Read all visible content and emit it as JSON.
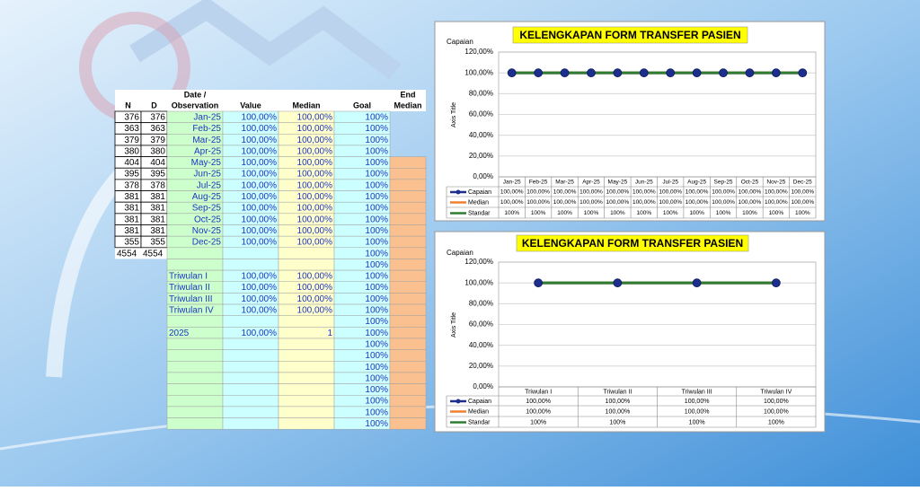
{
  "table": {
    "header_top": [
      null,
      null,
      "Date /",
      null,
      null,
      null,
      "End"
    ],
    "headers": [
      "N",
      "D",
      "Observation",
      "Value",
      "Median",
      "Goal",
      "Median"
    ],
    "rows": [
      [
        "376",
        "376",
        "Jan-25",
        "100,00%",
        "100,00%",
        "100%",
        null
      ],
      [
        "363",
        "363",
        "Feb-25",
        "100,00%",
        "100,00%",
        "100%",
        null
      ],
      [
        "379",
        "379",
        "Mar-25",
        "100,00%",
        "100,00%",
        "100%",
        null
      ],
      [
        "380",
        "380",
        "Apr-25",
        "100,00%",
        "100,00%",
        "100%",
        null
      ],
      [
        "404",
        "404",
        "May-25",
        "100,00%",
        "100,00%",
        "100%",
        null
      ],
      [
        "395",
        "395",
        "Jun-25",
        "100,00%",
        "100,00%",
        "100%",
        null
      ],
      [
        "378",
        "378",
        "Jul-25",
        "100,00%",
        "100,00%",
        "100%",
        null
      ],
      [
        "381",
        "381",
        "Aug-25",
        "100,00%",
        "100,00%",
        "100%",
        null
      ],
      [
        "381",
        "381",
        "Sep-25",
        "100,00%",
        "100,00%",
        "100%",
        null
      ],
      [
        "381",
        "381",
        "Oct-25",
        "100,00%",
        "100,00%",
        "100%",
        null
      ],
      [
        "381",
        "381",
        "Nov-25",
        "100,00%",
        "100,00%",
        "100%",
        null
      ],
      [
        "355",
        "355",
        "Dec-25",
        "100,00%",
        "100,00%",
        "100%",
        null
      ],
      [
        "4554",
        "4554",
        null,
        null,
        null,
        "100%",
        null
      ],
      [
        null,
        null,
        null,
        null,
        null,
        "100%",
        null
      ],
      [
        null,
        null,
        "Triwulan I",
        "100,00%",
        "100,00%",
        "100%",
        null
      ],
      [
        null,
        null,
        "Triwulan II",
        "100,00%",
        "100,00%",
        "100%",
        null
      ],
      [
        null,
        null,
        "Triwulan III",
        "100,00%",
        "100,00%",
        "100%",
        null
      ],
      [
        null,
        null,
        "Triwulan IV",
        "100,00%",
        "100,00%",
        "100%",
        null
      ],
      [
        null,
        null,
        null,
        null,
        null,
        "100%",
        null
      ],
      [
        null,
        null,
        "2025",
        "100,00%",
        "1",
        "100%",
        null
      ],
      [
        null,
        null,
        null,
        null,
        null,
        "100%",
        null
      ],
      [
        null,
        null,
        null,
        null,
        null,
        "100%",
        null
      ],
      [
        null,
        null,
        null,
        null,
        null,
        "100%",
        null
      ],
      [
        null,
        null,
        null,
        null,
        null,
        "100%",
        null
      ],
      [
        null,
        null,
        null,
        null,
        null,
        "100%",
        null
      ],
      [
        null,
        null,
        null,
        null,
        null,
        "100%",
        null
      ],
      [
        null,
        null,
        null,
        null,
        null,
        "100%",
        null
      ],
      [
        null,
        null,
        null,
        null,
        null,
        "100%",
        null
      ]
    ]
  },
  "chart_data": [
    {
      "type": "line",
      "title": "KELENGKAPAN FORM TRANSFER PASIEN",
      "subtitle": "Capaian",
      "y_label": "Axis Title",
      "categories": [
        "Jan-25",
        "Feb-25",
        "Mar-25",
        "Apr-25",
        "May-25",
        "Jun-25",
        "Jul-25",
        "Aug-25",
        "Sep-25",
        "Oct-25",
        "Nov-25",
        "Dec-25"
      ],
      "ylim": [
        0,
        120
      ],
      "yticks": [
        {
          "value": 0,
          "label": "0,00%"
        },
        {
          "value": 20,
          "label": "20,00%"
        },
        {
          "value": 40,
          "label": "40,00%"
        },
        {
          "value": 60,
          "label": "60,00%"
        },
        {
          "value": 80,
          "label": "80,00%"
        },
        {
          "value": 100,
          "label": "100,00%"
        },
        {
          "value": 120,
          "label": "120,00%"
        }
      ],
      "grid": true,
      "series": [
        {
          "name": "Capaian",
          "color": "#1c2f8c",
          "marker": true,
          "values": [
            100,
            100,
            100,
            100,
            100,
            100,
            100,
            100,
            100,
            100,
            100,
            100
          ],
          "value_labels": [
            "100,00%",
            "100,00%",
            "100,00%",
            "100,00%",
            "100,00%",
            "100,00%",
            "100,00%",
            "100,00%",
            "100,00%",
            "100,00%",
            "100,00%",
            "100,00%"
          ]
        },
        {
          "name": "Median",
          "color": "#f08030",
          "values": [
            100,
            100,
            100,
            100,
            100,
            100,
            100,
            100,
            100,
            100,
            100,
            100
          ],
          "value_labels": [
            "100,00%",
            "100,00%",
            "100,00%",
            "100,00%",
            "100,00%",
            "100,00%",
            "100,00%",
            "100,00%",
            "100,00%",
            "100,00%",
            "100,00%",
            "100,00%"
          ]
        },
        {
          "name": "Standar",
          "color": "#2e7d32",
          "values": [
            100,
            100,
            100,
            100,
            100,
            100,
            100,
            100,
            100,
            100,
            100,
            100
          ],
          "value_labels": [
            "100%",
            "100%",
            "100%",
            "100%",
            "100%",
            "100%",
            "100%",
            "100%",
            "100%",
            "100%",
            "100%",
            "100%"
          ]
        }
      ]
    },
    {
      "type": "line",
      "title": "KELENGKAPAN FORM TRANSFER PASIEN",
      "subtitle": "Capaian",
      "y_label": "Axis Title",
      "categories": [
        "Triwulan I",
        "Triwulan II",
        "Triwulan III",
        "Triwulan IV"
      ],
      "ylim": [
        0,
        120
      ],
      "yticks": [
        {
          "value": 0,
          "label": "0,00%"
        },
        {
          "value": 20,
          "label": "20,00%"
        },
        {
          "value": 40,
          "label": "40,00%"
        },
        {
          "value": 60,
          "label": "60,00%"
        },
        {
          "value": 80,
          "label": "80,00%"
        },
        {
          "value": 100,
          "label": "100,00%"
        },
        {
          "value": 120,
          "label": "120,00%"
        }
      ],
      "grid": true,
      "series": [
        {
          "name": "Capaian",
          "color": "#1c2f8c",
          "marker": true,
          "values": [
            100,
            100,
            100,
            100
          ],
          "value_labels": [
            "100,00%",
            "100,00%",
            "100,00%",
            "100,00%"
          ]
        },
        {
          "name": "Median",
          "color": "#f08030",
          "values": [
            100,
            100,
            100,
            100
          ],
          "value_labels": [
            "100,00%",
            "100,00%",
            "100,00%",
            "100,00%"
          ]
        },
        {
          "name": "Standar",
          "color": "#2e7d32",
          "values": [
            100,
            100,
            100,
            100
          ],
          "value_labels": [
            "100%",
            "100%",
            "100%",
            "100%"
          ]
        }
      ]
    }
  ]
}
